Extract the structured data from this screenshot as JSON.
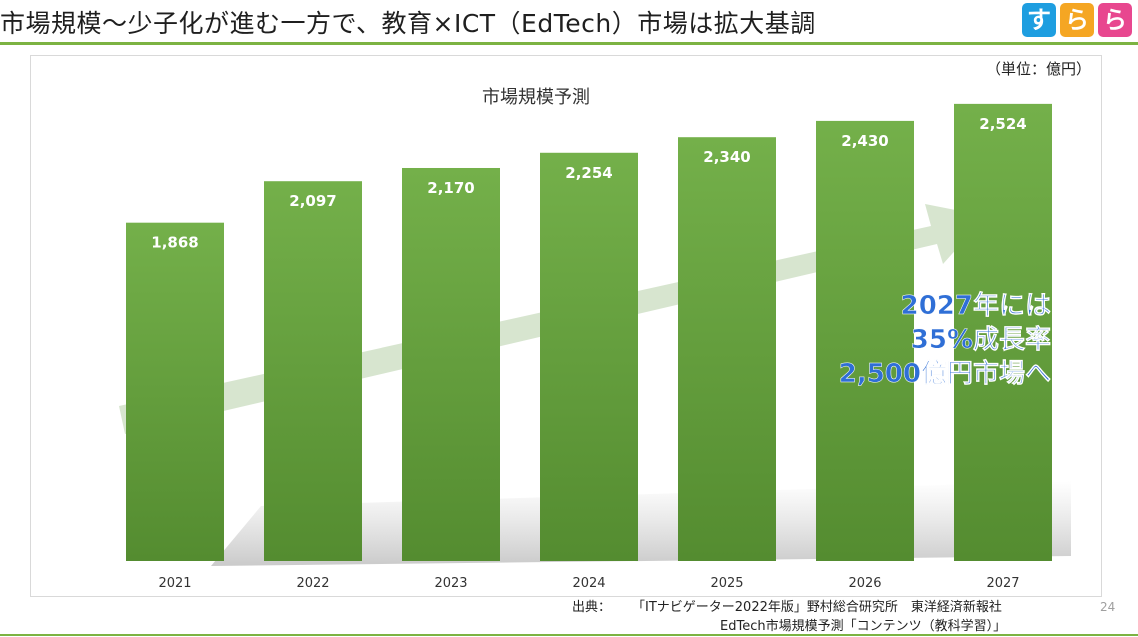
{
  "slide": {
    "title": "市場規模〜少子化が進む一方で、教育×ICT（EdTech）市場は拡大基調",
    "page_number": "24"
  },
  "logo": {
    "tiles": [
      {
        "glyph": "す",
        "color": "#1e9ee0"
      },
      {
        "glyph": "ら",
        "color": "#f5a623"
      },
      {
        "glyph": "ら",
        "color": "#e8478f"
      }
    ]
  },
  "chart_data": {
    "type": "bar",
    "title": "市場規模予測",
    "unit": "（単位：億円）",
    "categories": [
      "2021",
      "2022",
      "2023",
      "2024",
      "2025",
      "2026",
      "2027"
    ],
    "values": [
      1868,
      2097,
      2170,
      2254,
      2340,
      2430,
      2524
    ],
    "value_labels": [
      "1,868",
      "2,097",
      "2,170",
      "2,254",
      "2,340",
      "2,430",
      "2,524"
    ],
    "ylim": [
      0,
      2700
    ],
    "grid": false,
    "bar_color": "#6aa842",
    "callout": {
      "lines": [
        "2027年には",
        "35%成長率",
        "2,500億円市場へ"
      ],
      "color": "#2f6fd6"
    }
  },
  "source": {
    "label": "出典：",
    "line1": "「ITナビゲーター2022年版」野村総合研究所　東洋経済新報社",
    "line2": "EdTech市場規模予測「コンテンツ（教科学習）」"
  }
}
